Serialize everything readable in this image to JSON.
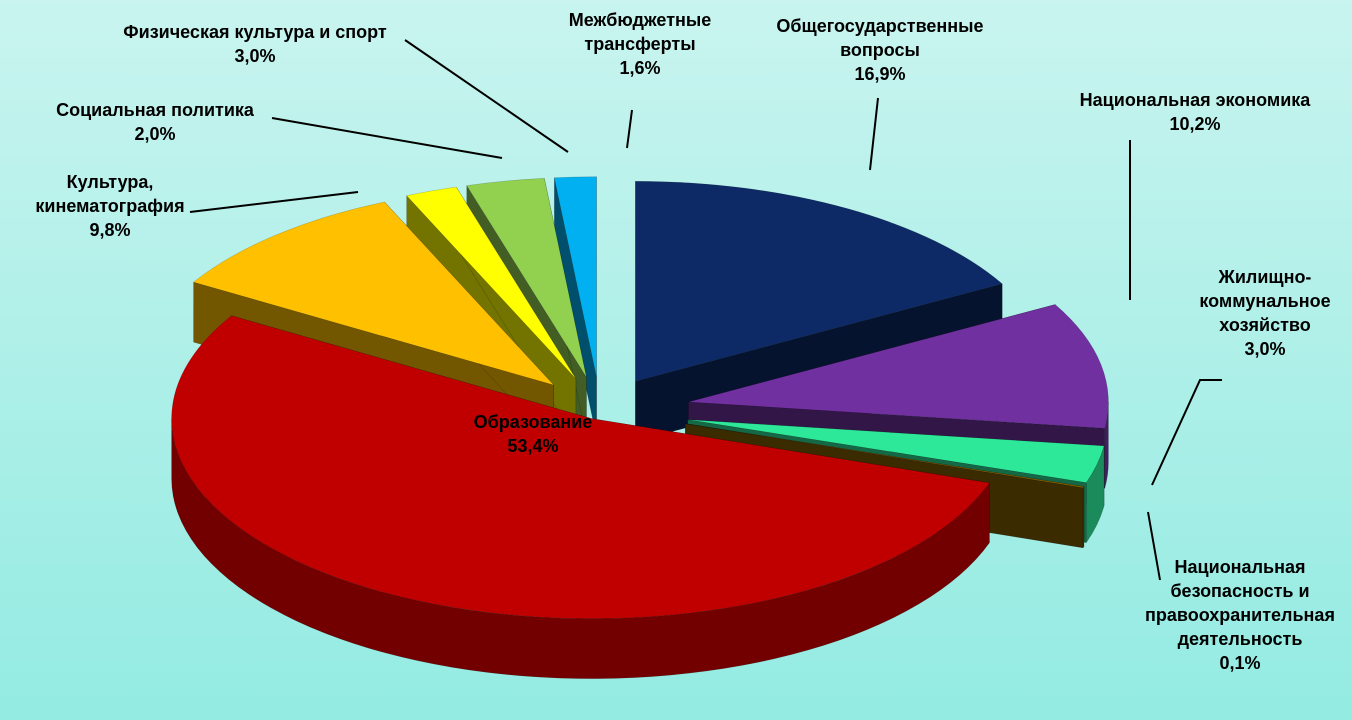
{
  "chart_data": {
    "type": "pie",
    "categories": [
      "Общегосударственные вопросы",
      "Национальная экономика",
      "Жилищно-коммунальное хозяйство",
      "Национальная безопасность и правоохранительная деятельность",
      "Образование",
      "Культура, кинематография",
      "Социальная политика",
      "Физическая культура и спорт",
      "Межбюджетные трансферты"
    ],
    "values": [
      16.9,
      10.2,
      3.0,
      0.1,
      53.4,
      9.8,
      2.0,
      3.0,
      1.6
    ],
    "value_labels": [
      "16,9%",
      "10,2%",
      "3,0%",
      "0,1%",
      "53,4%",
      "9,8%",
      "2,0%",
      "3,0%",
      "1,6%"
    ],
    "colors": [
      "#0d2a66",
      "#7030a0",
      "#2ee89a",
      "#806000",
      "#c00000",
      "#ffc000",
      "#ffff00",
      "#92d050",
      "#00b0f0"
    ]
  }
}
